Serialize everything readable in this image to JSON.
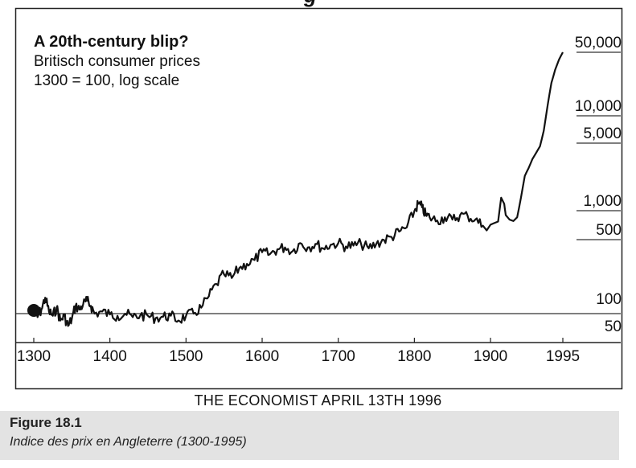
{
  "header_fragment": "g",
  "chart_data": {
    "type": "line",
    "title": "A 20th-century blip?",
    "subtitle": "Britisch consumer prices",
    "subtitle2": "1300 = 100, log scale",
    "scale": "log",
    "xlim": [
      1290,
      1995
    ],
    "ylim": [
      40,
      60000
    ],
    "x_ticks": [
      "1300",
      "1400",
      "1500",
      "1600",
      "1700",
      "1800",
      "1900",
      "1995"
    ],
    "y_ticks": [
      "50,000",
      "10,000",
      "5,000",
      "1,000",
      "500",
      "100",
      "50"
    ],
    "y_tick_values": [
      50000,
      10000,
      5000,
      1000,
      500,
      100,
      50
    ],
    "reference_line": 100,
    "start_marker": {
      "x": 1300,
      "y": 100
    },
    "series": [
      {
        "x": [
          1300,
          1305,
          1310,
          1315,
          1320,
          1325,
          1330,
          1335,
          1340,
          1345,
          1350,
          1355,
          1360,
          1365,
          1370,
          1375,
          1380,
          1390,
          1400,
          1410,
          1420,
          1430,
          1440,
          1450,
          1460,
          1470,
          1480,
          1490,
          1500,
          1510,
          1520,
          1530,
          1540,
          1550,
          1560,
          1570,
          1580,
          1590,
          1600,
          1610,
          1620,
          1630,
          1640,
          1650,
          1660,
          1670,
          1680,
          1690,
          1700,
          1710,
          1720,
          1730,
          1740,
          1750,
          1760,
          1770,
          1780,
          1790,
          1800,
          1805,
          1810,
          1815,
          1820,
          1830,
          1840,
          1850,
          1860,
          1870,
          1880,
          1890,
          1900,
          1910,
          1914,
          1918,
          1920,
          1925,
          1930,
          1935,
          1940,
          1945,
          1950,
          1955,
          1960,
          1965,
          1970,
          1975,
          1980,
          1985,
          1990,
          1995
        ],
        "y": [
          100,
          92,
          110,
          145,
          105,
          95,
          115,
          85,
          95,
          75,
          88,
          120,
          110,
          125,
          135,
          120,
          100,
          105,
          98,
          95,
          100,
          92,
          96,
          95,
          90,
          93,
          95,
          85,
          95,
          100,
          115,
          150,
          200,
          250,
          230,
          290,
          320,
          350,
          420,
          400,
          450,
          470,
          430,
          520,
          470,
          510,
          460,
          500,
          520,
          480,
          490,
          510,
          460,
          510,
          560,
          600,
          680,
          750,
          1100,
          1300,
          1200,
          1000,
          950,
          880,
          950,
          900,
          1000,
          980,
          900,
          780,
          800,
          860,
          1500,
          1300,
          1000,
          900,
          870,
          950,
          1500,
          2500,
          3000,
          3700,
          4300,
          5000,
          7200,
          13000,
          22000,
          30000,
          38000,
          45000
        ]
      }
    ]
  },
  "source_text": "THE ECONOMIST APRIL 13TH 1996",
  "caption": {
    "figure_label": "Figure 18.1",
    "text": "Indice des prix en Angleterre (1300-1995)"
  }
}
